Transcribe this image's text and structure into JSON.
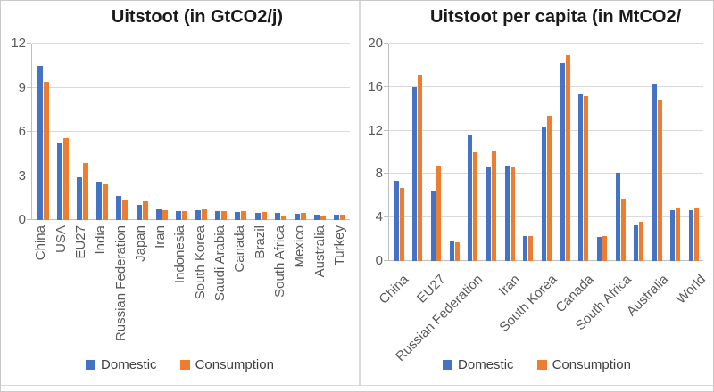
{
  "colors": {
    "domestic": "#4472C4",
    "consumption": "#ED7D31",
    "gridline": "#D9D9D9",
    "axis_line": "#BFBFBF",
    "tick_text": "#595959",
    "title_text": "#1A1A1A"
  },
  "chart_data": [
    {
      "type": "bar",
      "title": "Uitstoot (in GtCO2/j)",
      "categories": [
        "China",
        "USA",
        "EU27",
        "India",
        "Russian Federation",
        "Japan",
        "Iran",
        "Indonesia",
        "South Korea",
        "Saudi Arabia",
        "Canada",
        "Brazil",
        "South Africa",
        "Mexico",
        "Australia",
        "Turkey"
      ],
      "series": [
        {
          "name": "Domestic",
          "color": "#4472C4",
          "values": [
            10.5,
            5.2,
            2.9,
            2.6,
            1.65,
            1.05,
            0.7,
            0.62,
            0.65,
            0.58,
            0.53,
            0.47,
            0.46,
            0.43,
            0.39,
            0.39
          ]
        },
        {
          "name": "Consumption",
          "color": "#ED7D31",
          "values": [
            9.4,
            5.6,
            3.9,
            2.4,
            1.4,
            1.25,
            0.68,
            0.62,
            0.7,
            0.62,
            0.58,
            0.52,
            0.3,
            0.47,
            0.33,
            0.35
          ]
        }
      ],
      "ylim": [
        0,
        12
      ],
      "yticks": [
        0,
        3,
        6,
        9,
        12
      ],
      "xlabel": "",
      "ylabel": "",
      "grid": true,
      "x_label_rotation": 90,
      "legend_position": "bottom"
    },
    {
      "type": "bar",
      "title": "Uitstoot per capita (in MtCO2/",
      "categories": [
        "China",
        "",
        "EU27",
        "",
        "Russian Federation",
        "",
        "Iran",
        "",
        "South Korea",
        "",
        "Canada",
        "",
        "South Africa",
        "",
        "Australia",
        "",
        "World"
      ],
      "series": [
        {
          "name": "Domestic",
          "color": "#4472C4",
          "values": [
            7.4,
            16.0,
            6.5,
            1.9,
            11.6,
            8.7,
            8.8,
            2.3,
            12.4,
            18.2,
            15.4,
            2.2,
            8.1,
            3.4,
            16.3,
            4.7,
            4.7
          ]
        },
        {
          "name": "Consumption",
          "color": "#ED7D31",
          "values": [
            6.7,
            17.1,
            8.8,
            1.7,
            10.0,
            10.1,
            8.6,
            2.3,
            13.4,
            18.9,
            15.2,
            2.3,
            5.7,
            3.6,
            14.8,
            4.8,
            4.8
          ]
        }
      ],
      "ylim": [
        0,
        20
      ],
      "yticks": [
        0,
        4,
        8,
        12,
        16,
        20
      ],
      "xlabel": "",
      "ylabel": "",
      "grid": true,
      "x_label_rotation": 45,
      "legend_position": "bottom"
    }
  ]
}
